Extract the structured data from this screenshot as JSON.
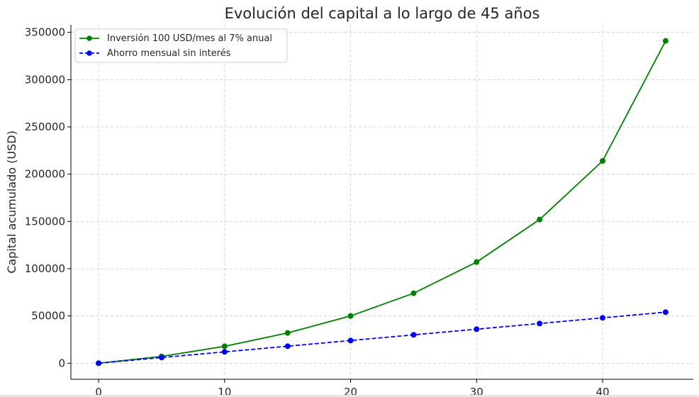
{
  "chart_data": {
    "type": "line",
    "title": "Evolución del capital a lo largo de 45 años",
    "xlabel": "",
    "ylabel": "Capital acumulado (USD)",
    "x": [
      0,
      5,
      10,
      15,
      20,
      25,
      30,
      35,
      40,
      45
    ],
    "xlim": [
      -2.2,
      47.2
    ],
    "ylim": [
      -17000,
      358000
    ],
    "xticks": [
      0,
      10,
      20,
      30,
      40
    ],
    "yticks": [
      0,
      50000,
      100000,
      150000,
      200000,
      250000,
      300000,
      350000
    ],
    "grid": true,
    "legend_position": "top-left",
    "series": [
      {
        "name": "Inversión 100 USD/mes al 7% anual",
        "color": "#008000",
        "style": "solid",
        "values": [
          0,
          7200,
          17900,
          32000,
          50000,
          74000,
          107000,
          152000,
          214000,
          341000
        ]
      },
      {
        "name": "Ahorro mensual sin interés",
        "color": "#0000ff",
        "style": "dashed",
        "values": [
          0,
          6000,
          12000,
          18000,
          24000,
          30000,
          36000,
          42000,
          48000,
          54000
        ]
      }
    ]
  }
}
